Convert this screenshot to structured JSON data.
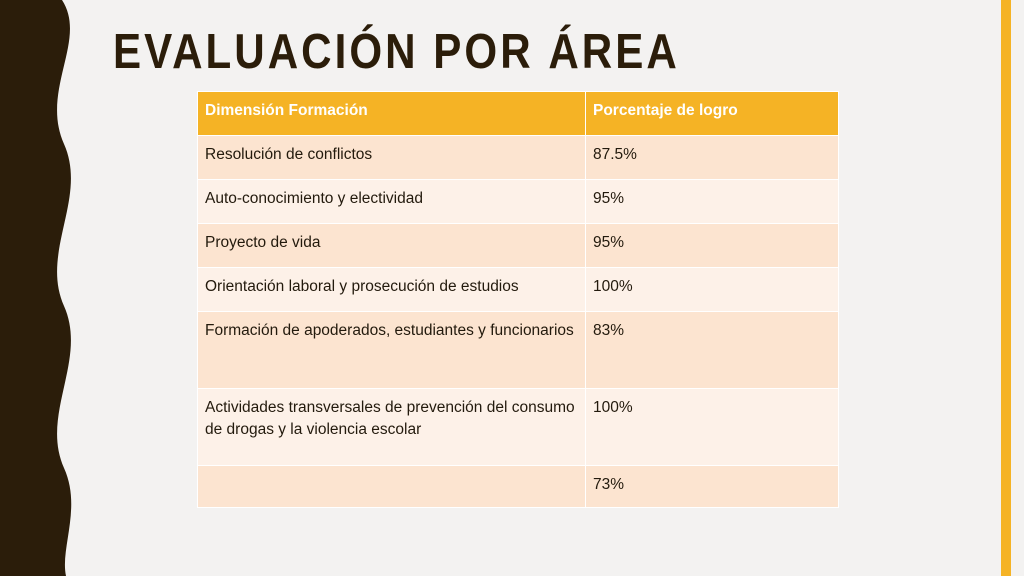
{
  "title": "EVALUACIÓN POR ÁREA",
  "colors": {
    "background": "#f3f2f1",
    "dark_band": "#2b1d0a",
    "accent": "#f5b325",
    "title": "#2b1d0a",
    "header_bg": "#f5b325",
    "row_dark": "#fce4d0",
    "row_light": "#fdf1e8",
    "border": "#ffffff"
  },
  "table": {
    "headers": [
      "Dimensión Formación",
      "Porcentaje de logro"
    ],
    "rows": [
      [
        "Resolución de conflictos",
        "87.5%"
      ],
      [
        "Auto-conocimiento y electividad",
        "95%"
      ],
      [
        "Proyecto de vida",
        "95%"
      ],
      [
        "Orientación laboral y prosecución de estudios",
        "100%"
      ],
      [
        "Formación de apoderados, estudiantes y funcionarios",
        "83%"
      ],
      [
        "Actividades transversales de prevención del consumo de drogas y la violencia escolar",
        "100%"
      ],
      [
        "",
        "73%"
      ]
    ]
  }
}
